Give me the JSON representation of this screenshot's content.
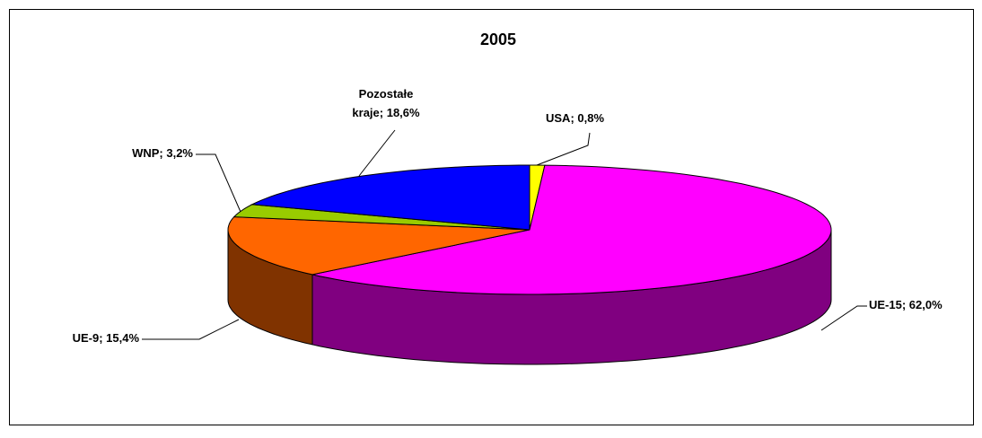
{
  "chart_data": {
    "type": "pie",
    "title": "2005",
    "values": [
      0.8,
      62.0,
      15.4,
      3.2,
      18.6
    ],
    "value_labels": [
      "USA; 0,8%",
      "UE-15; 62,0%",
      "UE-9; 15,4%",
      "WNP; 3,2%",
      "Pozostałe\nkraje; 18,6%"
    ],
    "colors": [
      "#ffff00",
      "#ff00ff",
      "#ff6600",
      "#99cc00",
      "#0000ff"
    ],
    "side_colors": [
      "#808000",
      "#800080",
      "#803300",
      "#4d6600",
      "#000080"
    ]
  }
}
